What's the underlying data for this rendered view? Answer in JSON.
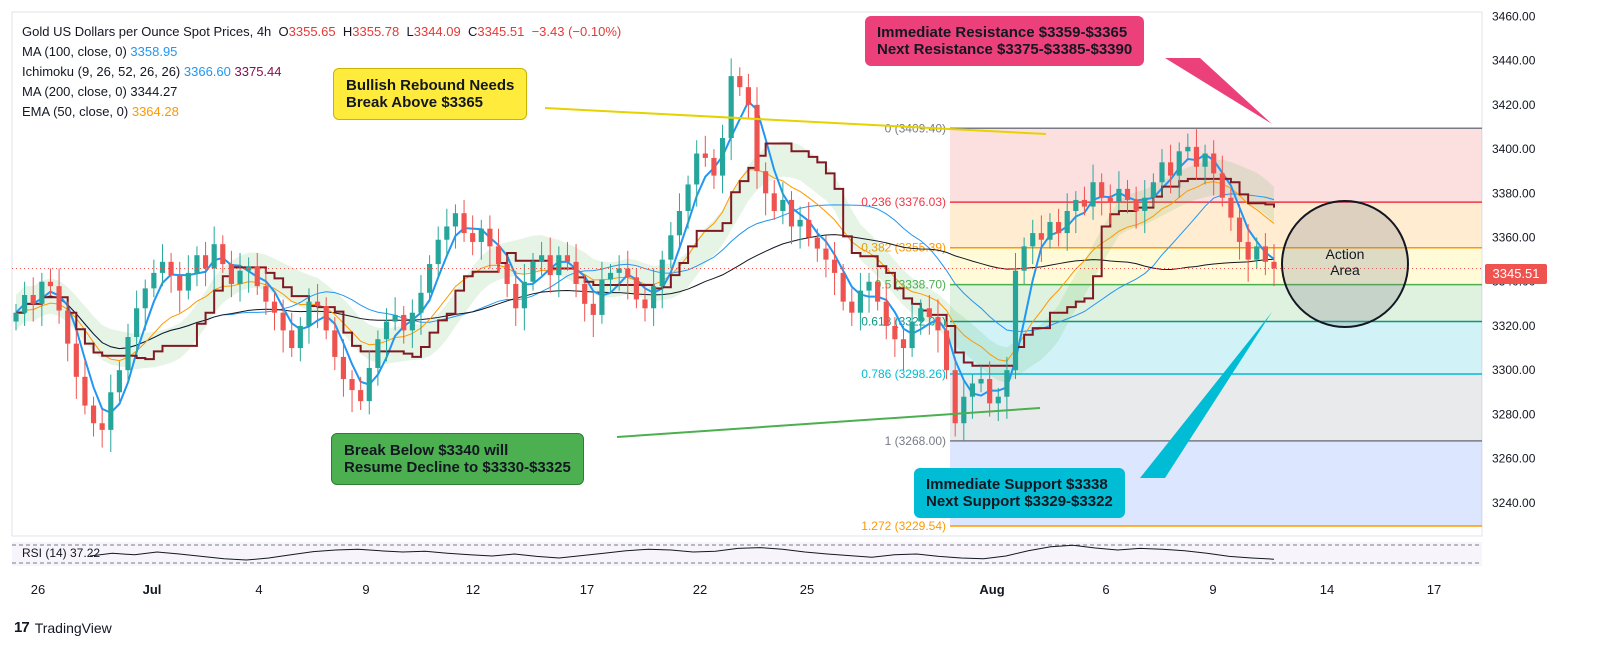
{
  "legend": {
    "title": "Gold US Dollars per Ounce Spot Prices, 4h",
    "ohlc": {
      "o_label": "O",
      "o": "3355.65",
      "h_label": "H",
      "h": "3355.78",
      "l_label": "L",
      "l": "3344.09",
      "c_label": "C",
      "c": "3345.51",
      "change": "−3.43 (−0.10%)"
    },
    "ma100": {
      "label": "MA (100, close, 0)",
      "value": "3358.95"
    },
    "ichimoku": {
      "label": "Ichimoku (9, 26, 52, 26, 26)",
      "value1": "3366.60",
      "value2": "3375.44"
    },
    "ma200": {
      "label": "MA (200, close, 0)",
      "value": "3344.27"
    },
    "ema50": {
      "label": "EMA (50, close, 0)",
      "value": "3364.28"
    }
  },
  "annotations": {
    "bullish": "Bullish Rebound Needs\nBreak Above $3365",
    "resistance": "Immediate Resistance $3359-$3365\nNext Resistance $3375-$3385-$3390",
    "bearish": "Break Below $3340 will\nResume Decline to $3330-$3325",
    "support": "Immediate Support $3338\nNext Support $3329-$3322",
    "action_area": "Action\nArea"
  },
  "price_badge": "3345.51",
  "rsi_label": "RSI (14)   37.22",
  "brand": {
    "mark": "17",
    "name": "TradingView"
  },
  "colors": {
    "up": "#26a69a",
    "down": "#ef5350",
    "ma100": "#2196f3",
    "ma200": "#131722",
    "ema50": "#ff9800",
    "tenkan": "#2196f3",
    "kijun": "#801922"
  },
  "chart_data": {
    "type": "candlestick",
    "title": "Gold US Dollars per Ounce Spot Prices, 4h",
    "ylim": [
      3225,
      3462
    ],
    "y_ticks": [
      "3460.00",
      "3440.00",
      "3420.00",
      "3400.00",
      "3380.00",
      "3360.00",
      "3340.00",
      "3320.00",
      "3300.00",
      "3280.00",
      "3260.00",
      "3240.00"
    ],
    "x_ticks": [
      "26",
      "Jul",
      "4",
      "9",
      "12",
      "17",
      "22",
      "25",
      "Aug",
      "6",
      "9",
      "14",
      "17"
    ],
    "fibonacci": [
      {
        "label": "0 (3409.40)",
        "level": 3409.4
      },
      {
        "label": "0.236 (3376.03)",
        "level": 3376.03
      },
      {
        "label": "0.382 (3355.39)",
        "level": 3355.39
      },
      {
        "label": "0.5 (3338.70)",
        "level": 3338.7
      },
      {
        "label": "0.618 (3322.01)",
        "level": 3322.01
      },
      {
        "label": "0.786 (3298.26)",
        "level": 3298.26
      },
      {
        "label": "1 (3268.00)",
        "level": 3268.0
      },
      {
        "label": "1.272 (3229.54)",
        "level": 3229.54
      }
    ],
    "closes": [
      3326,
      3334,
      3330,
      3340,
      3338,
      3327,
      3312,
      3297,
      3284,
      3276,
      3273,
      3290,
      3300,
      3315,
      3328,
      3337,
      3344,
      3349,
      3343,
      3336,
      3344,
      3352,
      3346,
      3357,
      3348,
      3339,
      3345,
      3347,
      3338,
      3331,
      3326,
      3318,
      3310,
      3320,
      3331,
      3329,
      3318,
      3306,
      3296,
      3291,
      3286,
      3301,
      3314,
      3322,
      3325,
      3318,
      3326,
      3335,
      3348,
      3359,
      3365,
      3371,
      3362,
      3358,
      3364,
      3356,
      3348,
      3339,
      3328,
      3340,
      3349,
      3352,
      3343,
      3352,
      3349,
      3339,
      3330,
      3325,
      3341,
      3344,
      3346,
      3342,
      3332,
      3328,
      3338,
      3350,
      3361,
      3372,
      3384,
      3398,
      3396,
      3388,
      3405,
      3433,
      3428,
      3420,
      3390,
      3380,
      3372,
      3377,
      3365,
      3368,
      3360,
      3355,
      3350,
      3344,
      3331,
      3326,
      3336,
      3340,
      3331,
      3320,
      3314,
      3310,
      3322,
      3328,
      3324,
      3318,
      3300,
      3276,
      3288,
      3294,
      3296,
      3285,
      3288,
      3300,
      3345,
      3356,
      3362,
      3359,
      3367,
      3362,
      3372,
      3377,
      3374,
      3385,
      3378,
      3376,
      3382,
      3377,
      3372,
      3378,
      3385,
      3394,
      3388,
      3399,
      3401,
      3392,
      3398,
      3389,
      3378,
      3369,
      3358,
      3350,
      3356,
      3349,
      3346
    ],
    "rsi": [
      45,
      52,
      48,
      55,
      50,
      44,
      38,
      35,
      40,
      48,
      56,
      60,
      62,
      58,
      55,
      57,
      52,
      48,
      45,
      50,
      44,
      40,
      46,
      52,
      58,
      62,
      60,
      55,
      57,
      64,
      66,
      62,
      55,
      50,
      46,
      42,
      48,
      50,
      44,
      40,
      38,
      45,
      58,
      68,
      72,
      65,
      60,
      64,
      62,
      58,
      52,
      44,
      40,
      37
    ]
  }
}
